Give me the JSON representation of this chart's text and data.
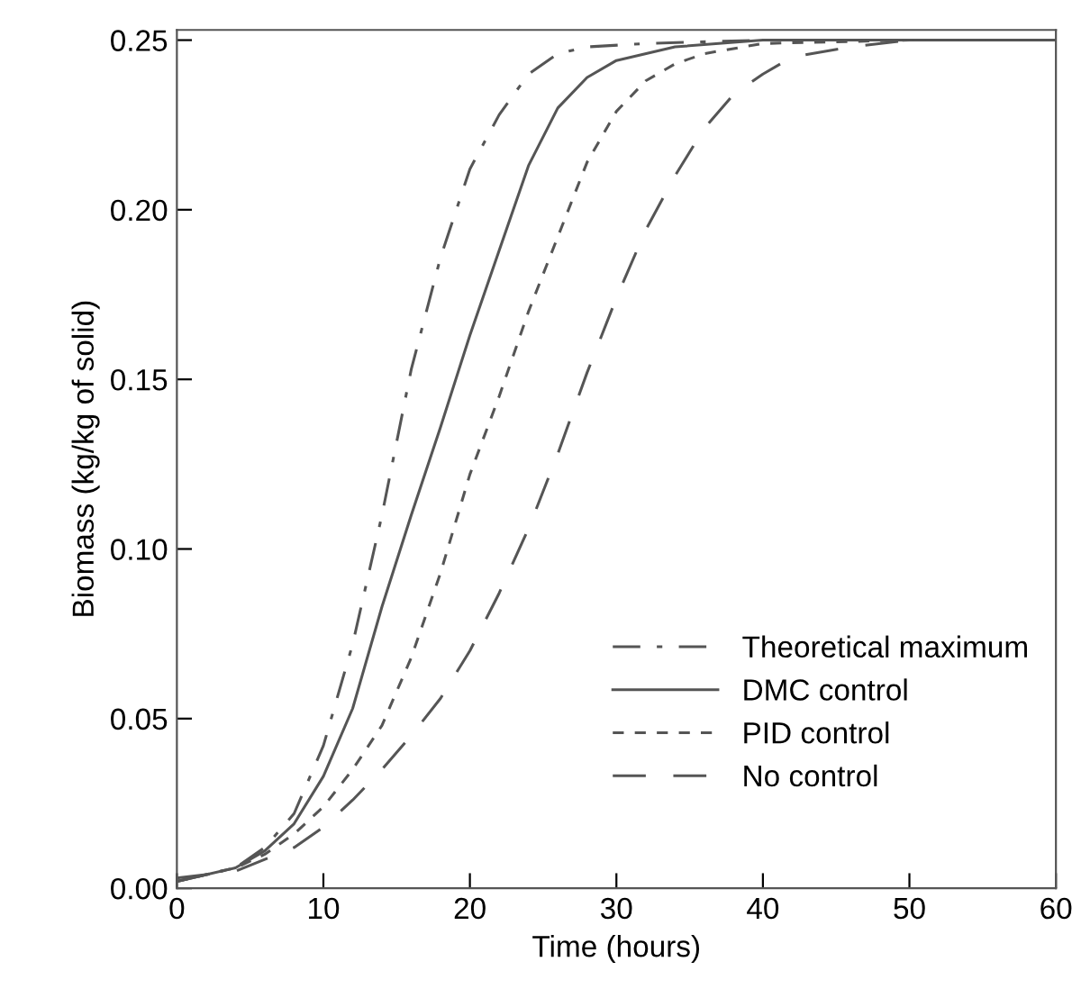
{
  "chart_data": {
    "type": "line",
    "xlabel": "Time (hours)",
    "ylabel": "Biomass (kg/kg of solid)",
    "xlim": [
      0,
      60
    ],
    "ylim": [
      0,
      0.253
    ],
    "xticks": [
      0,
      10,
      20,
      30,
      40,
      50,
      60
    ],
    "yticks": [
      {
        "value": 0,
        "label": "0.00"
      },
      {
        "value": 0.05,
        "label": "0.05"
      },
      {
        "value": 0.1,
        "label": "0.10"
      },
      {
        "value": 0.15,
        "label": "0.15"
      },
      {
        "value": 0.2,
        "label": "0.20"
      },
      {
        "value": 0.25,
        "label": "0.25"
      }
    ],
    "grid": false,
    "legend": "bottom right",
    "marker": "none",
    "series": [
      {
        "name": "Theoretical maximum",
        "color": "#555555",
        "line_style": "dashdot",
        "x": [
          0,
          4,
          6,
          8,
          10,
          12,
          14,
          16,
          18,
          20,
          22,
          24,
          26,
          28,
          32,
          40,
          50
        ],
        "values": [
          0.002,
          0.006,
          0.012,
          0.022,
          0.042,
          0.072,
          0.11,
          0.153,
          0.186,
          0.212,
          0.228,
          0.24,
          0.246,
          0.248,
          0.249,
          0.25,
          0.25
        ]
      },
      {
        "name": "DMC control",
        "color": "#555555",
        "line_style": "solid",
        "x": [
          0,
          4,
          6,
          8,
          10,
          12,
          14,
          16,
          18,
          20,
          22,
          24,
          26,
          28,
          30,
          34,
          40,
          60
        ],
        "values": [
          0.002,
          0.006,
          0.011,
          0.019,
          0.033,
          0.053,
          0.083,
          0.11,
          0.136,
          0.163,
          0.188,
          0.213,
          0.23,
          0.239,
          0.244,
          0.248,
          0.25,
          0.25
        ]
      },
      {
        "name": "PID control",
        "color": "#555555",
        "line_style": "dashed",
        "x": [
          0,
          4,
          6,
          8,
          10,
          12,
          14,
          16,
          18,
          20,
          22,
          24,
          26,
          28,
          30,
          32,
          34,
          36,
          40,
          50,
          55
        ],
        "values": [
          0.002,
          0.006,
          0.01,
          0.016,
          0.024,
          0.035,
          0.048,
          0.068,
          0.093,
          0.122,
          0.145,
          0.17,
          0.192,
          0.214,
          0.229,
          0.238,
          0.243,
          0.246,
          0.249,
          0.25,
          0.25
        ]
      },
      {
        "name": "No control",
        "color": "#555555",
        "line_style": "longdash",
        "x": [
          0,
          4,
          8,
          10,
          12,
          14,
          16,
          18,
          20,
          22,
          24,
          26,
          28,
          30,
          32,
          34,
          36,
          38,
          40,
          42,
          46,
          50,
          60
        ],
        "values": [
          0.003,
          0.005,
          0.012,
          0.018,
          0.026,
          0.035,
          0.045,
          0.056,
          0.07,
          0.087,
          0.106,
          0.128,
          0.152,
          0.174,
          0.194,
          0.21,
          0.224,
          0.234,
          0.24,
          0.245,
          0.248,
          0.25,
          0.25
        ]
      }
    ]
  }
}
